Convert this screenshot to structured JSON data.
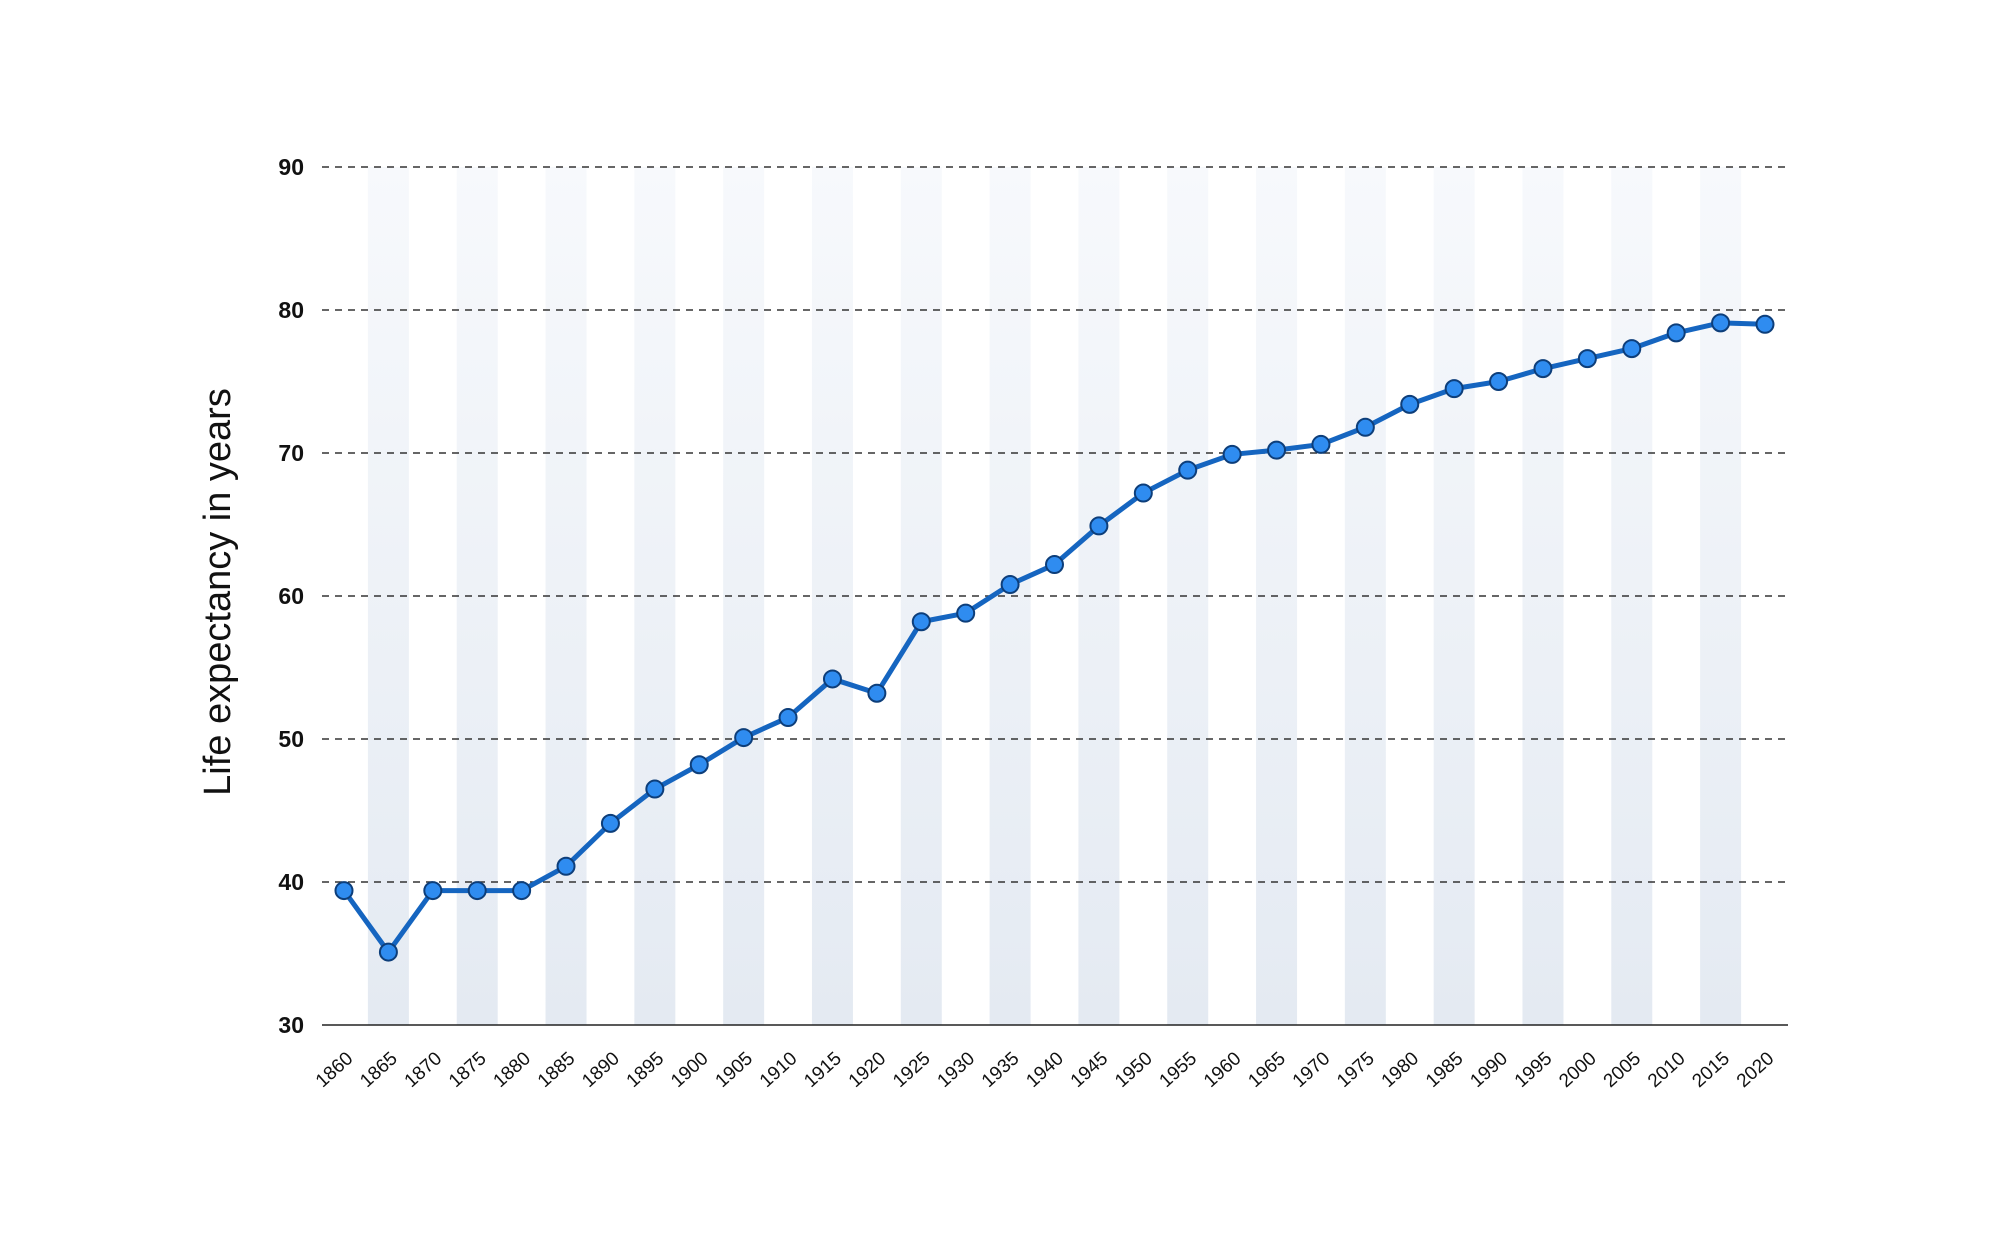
{
  "chart_data": {
    "type": "line",
    "title": "",
    "xlabel": "",
    "ylabel": "Life expectancy in years",
    "x": [
      1860,
      1865,
      1870,
      1875,
      1880,
      1885,
      1890,
      1895,
      1900,
      1905,
      1910,
      1915,
      1920,
      1925,
      1930,
      1935,
      1940,
      1945,
      1950,
      1955,
      1960,
      1965,
      1970,
      1975,
      1980,
      1985,
      1990,
      1995,
      2000,
      2005,
      2010,
      2015,
      2020
    ],
    "x_tick_labels": [
      "1860",
      "1865",
      "1870",
      "1875",
      "1880",
      "1885",
      "1890",
      "1895",
      "1900",
      "1905",
      "1910",
      "1915",
      "1920",
      "1925",
      "1930",
      "1935",
      "1940",
      "1945",
      "1950",
      "1955",
      "1960",
      "1965",
      "1970",
      "1975",
      "1980",
      "1985",
      "1990",
      "1995",
      "2000",
      "2005",
      "2010",
      "2015",
      "2020"
    ],
    "y_tick_labels": [
      "90",
      "80",
      "70",
      "60",
      "50",
      "40",
      "30"
    ],
    "y_ticks": [
      90,
      80,
      70,
      60,
      50,
      40,
      30
    ],
    "ylim": [
      30,
      90
    ],
    "series": [
      {
        "values": [
          39.4,
          35.1,
          39.4,
          39.4,
          39.4,
          41.1,
          44.1,
          46.5,
          48.2,
          50.1,
          51.5,
          54.2,
          53.2,
          58.2,
          58.8,
          60.8,
          62.2,
          64.9,
          67.2,
          68.8,
          69.9,
          70.2,
          70.6,
          71.8,
          73.4,
          74.5,
          75.0,
          75.9,
          76.6,
          77.3,
          78.4,
          79.1,
          79.0
        ]
      }
    ],
    "grid": true,
    "grid_style": "dashed horizontal",
    "alternating_column_shading": true,
    "colors": {
      "line": "#1565c0",
      "marker_fill": "#2f8cf0",
      "marker_stroke": "#0d3e7a",
      "grid": "#333333",
      "band_top": "#f7f9fc",
      "band_bottom": "#e4eaf2",
      "axis": "#222222"
    }
  }
}
